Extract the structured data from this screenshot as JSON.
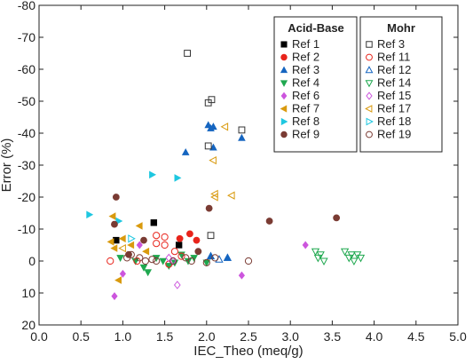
{
  "chart_data": {
    "type": "scatter",
    "xlabel": "IEC_Theo (meq/g)",
    "ylabel": "Error (%)",
    "xlim": [
      0,
      5
    ],
    "ylim": [
      -80,
      20
    ],
    "y_inverted": true,
    "x_ticks": [
      "0.0",
      "0.5",
      "1.0",
      "1.5",
      "2.0",
      "2.5",
      "3.0",
      "3.5",
      "4.0",
      "4.5",
      "5.0"
    ],
    "y_ticks": [
      "-80",
      "-70",
      "-60",
      "-50",
      "-40",
      "-30",
      "-20",
      "-10",
      "0",
      "10",
      "20"
    ],
    "grid": false,
    "legend_groups": [
      {
        "title": "Acid-Base",
        "placement": "top-right"
      },
      {
        "title": "Mohr",
        "placement": "top-right"
      }
    ],
    "series": [
      {
        "name": "Ref 1",
        "group": 0,
        "marker": "square-filled",
        "color": "#000000",
        "points": [
          [
            0.92,
            -6.5
          ],
          [
            1.37,
            -12
          ],
          [
            1.67,
            -5
          ]
        ]
      },
      {
        "name": "Ref 2",
        "group": 0,
        "marker": "circle-filled",
        "color": "#e8241b",
        "points": [
          [
            1.68,
            -7
          ],
          [
            1.8,
            -8.5
          ],
          [
            1.88,
            -6.5
          ]
        ]
      },
      {
        "name": "Ref 3",
        "group": 0,
        "marker": "triangle-up-filled",
        "color": "#1565c0",
        "points": [
          [
            1.75,
            -34
          ],
          [
            2.02,
            -42.5
          ],
          [
            2.05,
            -41.5
          ],
          [
            2.08,
            -42
          ],
          [
            2.08,
            -35.5
          ],
          [
            2.42,
            -38.5
          ],
          [
            2.05,
            -1.5
          ],
          [
            2.25,
            -1
          ]
        ]
      },
      {
        "name": "Ref 4",
        "group": 0,
        "marker": "triangle-down-filled",
        "color": "#1fa84f",
        "points": [
          [
            0.97,
            -1
          ],
          [
            1.15,
            0
          ],
          [
            1.25,
            2
          ],
          [
            1.3,
            3.5
          ],
          [
            1.4,
            -1
          ],
          [
            1.48,
            0
          ],
          [
            1.55,
            1.5
          ],
          [
            1.62,
            0.5
          ],
          [
            1.7,
            -2
          ],
          [
            1.78,
            0
          ],
          [
            1.85,
            -1
          ],
          [
            2.0,
            0.5
          ]
        ]
      },
      {
        "name": "Ref 6",
        "group": 0,
        "marker": "diamond-filled",
        "color": "#cc55dd",
        "points": [
          [
            0.9,
            11
          ],
          [
            1.0,
            4
          ],
          [
            1.2,
            -5
          ],
          [
            2.42,
            4.5
          ],
          [
            3.18,
            -5
          ]
        ]
      },
      {
        "name": "Ref 7",
        "group": 0,
        "marker": "triangle-left-filled",
        "color": "#d99a0e",
        "points": [
          [
            0.88,
            -14
          ],
          [
            0.86,
            -6
          ],
          [
            0.9,
            -4
          ],
          [
            0.95,
            6
          ],
          [
            1.0,
            -7
          ],
          [
            1.1,
            -5
          ],
          [
            1.2,
            -11
          ],
          [
            1.28,
            -3
          ]
        ]
      },
      {
        "name": "Ref 8",
        "group": 0,
        "marker": "triangle-right-filled",
        "color": "#1ec7e0",
        "points": [
          [
            0.6,
            -14.5
          ],
          [
            0.95,
            -12.5
          ],
          [
            1.35,
            -27
          ],
          [
            1.65,
            -26
          ]
        ]
      },
      {
        "name": "Ref 9",
        "group": 0,
        "marker": "circle-filled",
        "color": "#7a3b33",
        "points": [
          [
            0.9,
            -11.5
          ],
          [
            0.92,
            -20
          ],
          [
            1.07,
            -2
          ],
          [
            1.25,
            -6.5
          ],
          [
            1.9,
            -3
          ],
          [
            2.03,
            -16.5
          ],
          [
            2.75,
            -12.5
          ],
          [
            3.55,
            -13.5
          ]
        ]
      },
      {
        "name": "Ref 3",
        "group": 1,
        "marker": "square-open",
        "color": "#333333",
        "points": [
          [
            1.77,
            -65
          ],
          [
            2.02,
            -49.5
          ],
          [
            2.06,
            -50.5
          ],
          [
            2.02,
            -36
          ],
          [
            2.05,
            -8
          ],
          [
            2.42,
            -41
          ]
        ]
      },
      {
        "name": "Ref 11",
        "group": 1,
        "marker": "circle-open",
        "color": "#e8241b",
        "points": [
          [
            1.17,
            0
          ],
          [
            0.85,
            0
          ],
          [
            1.4,
            -8
          ],
          [
            1.4,
            -5.5
          ],
          [
            1.5,
            -7.5
          ],
          [
            1.5,
            -5
          ],
          [
            1.55,
            1
          ],
          [
            1.62,
            -3
          ],
          [
            1.7,
            -1.5
          ]
        ]
      },
      {
        "name": "Ref 12",
        "group": 1,
        "marker": "triangle-up-open",
        "color": "#1565c0",
        "points": [
          [
            2.05,
            -1.5
          ],
          [
            2.15,
            -0.5
          ],
          [
            2.25,
            -1
          ]
        ]
      },
      {
        "name": "Ref 14",
        "group": 1,
        "marker": "triangle-down-open",
        "color": "#1fa84f",
        "points": [
          [
            3.3,
            -3
          ],
          [
            3.33,
            -1
          ],
          [
            3.36,
            -2
          ],
          [
            3.4,
            0
          ],
          [
            3.65,
            -3
          ],
          [
            3.7,
            -1
          ],
          [
            3.73,
            -2
          ],
          [
            3.76,
            0
          ],
          [
            3.8,
            -2
          ],
          [
            3.84,
            -1
          ]
        ]
      },
      {
        "name": "Ref 15",
        "group": 1,
        "marker": "diamond-open",
        "color": "#cc55dd",
        "points": [
          [
            1.65,
            7.5
          ],
          [
            1.55,
            -1
          ],
          [
            1.6,
            0
          ]
        ]
      },
      {
        "name": "Ref 17",
        "group": 1,
        "marker": "triangle-left-open",
        "color": "#d99a0e",
        "points": [
          [
            2.22,
            -42
          ],
          [
            2.08,
            -31.5
          ],
          [
            2.1,
            -21
          ],
          [
            2.1,
            -20
          ],
          [
            2.3,
            -20.5
          ],
          [
            1.0,
            -4
          ]
        ]
      },
      {
        "name": "Ref 18",
        "group": 1,
        "marker": "triangle-right-open",
        "color": "#1ec7e0",
        "points": [
          [
            1.1,
            -7
          ]
        ]
      },
      {
        "name": "Ref 19",
        "group": 1,
        "marker": "circle-open",
        "color": "#7a3b33",
        "points": [
          [
            1.05,
            -1
          ],
          [
            1.1,
            -2
          ],
          [
            1.2,
            -1
          ],
          [
            1.27,
            0
          ],
          [
            1.35,
            -0.5
          ],
          [
            1.4,
            0
          ],
          [
            1.6,
            0
          ],
          [
            1.75,
            -1
          ],
          [
            1.82,
            0
          ],
          [
            2.0,
            0.5
          ],
          [
            2.1,
            -1
          ],
          [
            2.5,
            0
          ]
        ]
      }
    ]
  }
}
